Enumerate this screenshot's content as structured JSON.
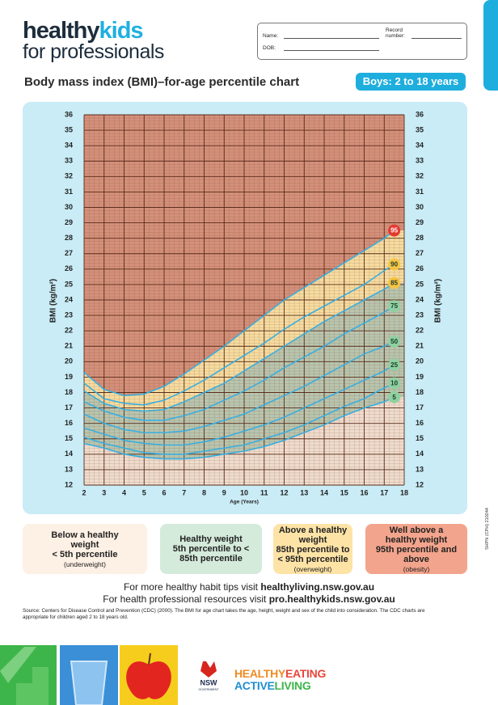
{
  "header": {
    "logo_part1": "healthy",
    "logo_part2": "kids",
    "logo_line2": "for professionals"
  },
  "form": {
    "name": "Name:",
    "record_line1": "Record",
    "record_line2": "number:",
    "dob": "DOB:"
  },
  "title": "Body mass index (BMI)–for-age percentile chart",
  "badge": "Boys: 2 to 18 years",
  "chart_data": {
    "type": "line",
    "x_label": "Age (Years)",
    "y_label": "BMI (kg/m²)",
    "x": [
      2,
      3,
      4,
      5,
      6,
      7,
      8,
      9,
      10,
      11,
      12,
      13,
      14,
      15,
      16,
      17,
      17.5
    ],
    "series": [
      {
        "name": "5",
        "color": "#8fd0a0",
        "values": [
          14.7,
          14.4,
          14.0,
          13.8,
          13.7,
          13.7,
          13.8,
          14.0,
          14.2,
          14.5,
          14.9,
          15.4,
          15.9,
          16.5,
          17.0,
          17.4,
          17.7
        ]
      },
      {
        "name": "10",
        "color": "#8fd0a0",
        "values": [
          15.1,
          14.7,
          14.4,
          14.1,
          14.0,
          14.0,
          14.2,
          14.4,
          14.6,
          15.0,
          15.4,
          15.9,
          16.5,
          17.1,
          17.6,
          18.3,
          18.6
        ]
      },
      {
        "name": "25",
        "color": "#8fd0a0",
        "values": [
          15.7,
          15.3,
          14.9,
          14.7,
          14.6,
          14.6,
          14.8,
          15.1,
          15.5,
          15.9,
          16.4,
          17.0,
          17.6,
          18.2,
          18.8,
          19.4,
          19.8
        ]
      },
      {
        "name": "50",
        "color": "#8fd0a0",
        "values": [
          16.6,
          16.0,
          15.6,
          15.4,
          15.4,
          15.5,
          15.8,
          16.2,
          16.6,
          17.2,
          17.8,
          18.4,
          19.1,
          19.8,
          20.5,
          21.0,
          21.3
        ]
      },
      {
        "name": "75",
        "color": "#8fd0a0",
        "values": [
          17.4,
          16.8,
          16.4,
          16.2,
          16.2,
          16.5,
          16.9,
          17.5,
          18.1,
          18.8,
          19.6,
          20.3,
          21.0,
          21.8,
          22.5,
          23.2,
          23.6
        ]
      },
      {
        "name": "85",
        "color": "#f6c444",
        "values": [
          18.1,
          17.3,
          16.9,
          16.8,
          16.9,
          17.4,
          18.0,
          18.6,
          19.4,
          20.2,
          21.0,
          21.8,
          22.6,
          23.3,
          24.0,
          24.7,
          25.1
        ]
      },
      {
        "name": "90",
        "color": "#f6c444",
        "values": [
          18.6,
          17.6,
          17.3,
          17.2,
          17.5,
          18.1,
          18.8,
          19.6,
          20.4,
          21.2,
          22.1,
          22.9,
          23.6,
          24.3,
          25.0,
          25.9,
          26.3
        ]
      },
      {
        "name": "95",
        "color": "#e2392f",
        "values": [
          19.3,
          18.2,
          17.8,
          17.9,
          18.4,
          19.2,
          20.1,
          21.0,
          22.0,
          23.0,
          24.0,
          24.8,
          25.6,
          26.4,
          27.2,
          28.0,
          28.5
        ]
      }
    ],
    "xlim": [
      2,
      18
    ],
    "ylim": [
      12,
      36
    ],
    "xticks": [
      2,
      3,
      4,
      5,
      6,
      7,
      8,
      9,
      10,
      11,
      12,
      13,
      14,
      15,
      16,
      17,
      18
    ],
    "yticks": [
      12,
      13,
      14,
      15,
      16,
      17,
      18,
      19,
      20,
      21,
      22,
      23,
      24,
      25,
      26,
      27,
      28,
      29,
      30,
      31,
      32,
      33,
      34,
      35,
      36
    ],
    "grid": true,
    "line_color": "#39aee0",
    "zone_colors": [
      "#efdccd",
      "#b9c5ae",
      "#f6dca0",
      "#d4907a"
    ]
  },
  "legend": [
    {
      "title": "Below a healthy weight",
      "detail": "< 5th percentile",
      "note": "(underweight)",
      "color": "#fdf0e4"
    },
    {
      "title": "Healthy weight",
      "detail": "5th percentile to < 85th percentile",
      "color": "#d4eadb"
    },
    {
      "title": "Above a healthy weight",
      "detail": "85th percentile to < 95th percentile",
      "note": "(overweight)",
      "color": "#fde3a6"
    },
    {
      "title": "Well above a healthy weight",
      "detail": "95th percentile and above",
      "note": "(obesity)",
      "color": "#f3a48c"
    }
  ],
  "links": [
    {
      "text": "For more healthy habit tips visit",
      "url": "healthyliving.nsw.gov.au"
    },
    {
      "text": "For health professional resources visit",
      "url": "pro.healthykids.nsw.gov.au"
    }
  ],
  "source": "Source: Centers for Disease Control and Prevention (CDC) (2000). The BMI for age chart takes the age, height, weight and sex of the child into consideration. The CDC charts are appropriate for children aged 2 to 18 years old.",
  "code": "SHPN (CPH) 210244",
  "footer": {
    "nsw": "NSW",
    "gov": "GOVERNMENT",
    "healthy": "HEALTHY",
    "eating": "EATING",
    "active": "ACTIVE",
    "living": "LIVING"
  }
}
